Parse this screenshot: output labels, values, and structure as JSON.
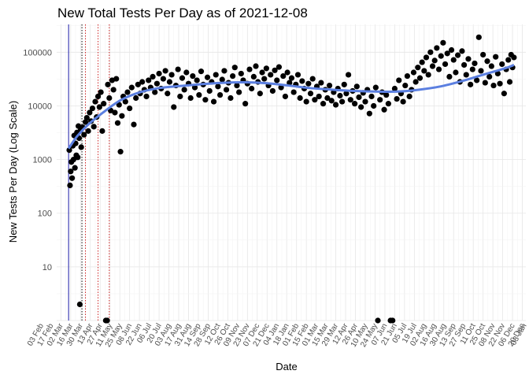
{
  "chart_data": {
    "type": "scatter",
    "title": "New Total Tests Per Day as of 2021-12-08",
    "xlabel": "Date",
    "ylabel": "New Tests Per Day (Log Scale)",
    "y_scale": "log10",
    "ylim": [
      1,
      330000
    ],
    "xlim": [
      "2020-02-25",
      "2021-12-25"
    ],
    "y_tick_labels": [
      "10",
      "100",
      "1000",
      "10000",
      "100000"
    ],
    "x_tick_labels": [
      "03 Feb",
      "17 Feb",
      "02 Mar",
      "16 Mar",
      "30 Mar",
      "13 Apr",
      "27 Apr",
      "11 May",
      "25 May",
      "08 Jun",
      "22 Jun",
      "06 Jul",
      "20 Jul",
      "03 Aug",
      "17 Aug",
      "31 Aug",
      "14 Sep",
      "28 Sep",
      "12 Oct",
      "26 Oct",
      "09 Nov",
      "23 Nov",
      "07 Dec",
      "21 Dec",
      "04 Jan",
      "18 Jan",
      "01 Feb",
      "15 Feb",
      "01 Mar",
      "15 Mar",
      "29 Mar",
      "12 Apr",
      "26 Apr",
      "10 May",
      "24 May",
      "07 Jun",
      "21 Jun",
      "05 Jul",
      "19 Jul",
      "02 Aug",
      "16 Aug",
      "30 Aug",
      "13 Sep",
      "27 Sep",
      "11 Oct",
      "25 Oct",
      "08 Nov",
      "22 Nov",
      "06 Dec",
      "20 Dec",
      "03 Jan"
    ],
    "vertical_lines": [
      {
        "date": "2020-03-13",
        "color": "#1a1aa6",
        "style": "solid"
      },
      {
        "date": "2020-04-01",
        "color": "#000000",
        "style": "dotted"
      },
      {
        "date": "2020-04-06",
        "color": "#cc2222",
        "style": "dotted"
      },
      {
        "date": "2020-04-24",
        "color": "#cc2222",
        "style": "dotted"
      },
      {
        "date": "2020-05-10",
        "color": "#cc2222",
        "style": "dotted"
      }
    ],
    "trend": {
      "color": "#5b7fe0",
      "points": [
        [
          "2020-03-13",
          1600
        ],
        [
          "2020-03-25",
          2700
        ],
        [
          "2020-04-10",
          4500
        ],
        [
          "2020-05-01",
          7500
        ],
        [
          "2020-05-25",
          12500
        ],
        [
          "2020-06-20",
          17500
        ],
        [
          "2020-07-20",
          21500
        ],
        [
          "2020-08-20",
          23500
        ],
        [
          "2020-09-20",
          25500
        ],
        [
          "2020-10-20",
          27000
        ],
        [
          "2020-11-20",
          27500
        ],
        [
          "2020-12-20",
          26500
        ],
        [
          "2021-01-20",
          24000
        ],
        [
          "2021-02-20",
          21500
        ],
        [
          "2021-03-25",
          20000
        ],
        [
          "2021-04-25",
          19000
        ],
        [
          "2021-05-25",
          18500
        ],
        [
          "2021-06-25",
          18500
        ],
        [
          "2021-07-25",
          20000
        ],
        [
          "2021-08-25",
          23000
        ],
        [
          "2021-09-25",
          29000
        ],
        [
          "2021-10-25",
          38000
        ],
        [
          "2021-11-25",
          50000
        ],
        [
          "2021-12-08",
          58000
        ]
      ]
    },
    "series": [
      {
        "values": [
          [
            "2020-03-14",
            1500
          ],
          [
            "2020-03-15",
            330
          ],
          [
            "2020-03-16",
            600
          ],
          [
            "2020-03-17",
            900
          ],
          [
            "2020-03-18",
            450
          ],
          [
            "2020-03-19",
            1800
          ],
          [
            "2020-03-20",
            1000
          ],
          [
            "2020-03-21",
            2800
          ],
          [
            "2020-03-22",
            700
          ],
          [
            "2020-03-23",
            2000
          ],
          [
            "2020-03-24",
            1200
          ],
          [
            "2020-03-25",
            3200
          ],
          [
            "2020-03-26",
            1100
          ],
          [
            "2020-03-27",
            4200
          ],
          [
            "2020-03-28",
            2500
          ],
          [
            "2020-03-29",
            2
          ],
          [
            "2020-03-30",
            3500
          ],
          [
            "2020-03-31",
            1700
          ],
          [
            "2020-04-02",
            4000
          ],
          [
            "2020-04-04",
            2900
          ],
          [
            "2020-04-06",
            5000
          ],
          [
            "2020-04-08",
            6000
          ],
          [
            "2020-04-10",
            3400
          ],
          [
            "2020-04-12",
            7500
          ],
          [
            "2020-04-14",
            5200
          ],
          [
            "2020-04-16",
            9000
          ],
          [
            "2020-04-18",
            4100
          ],
          [
            "2020-04-20",
            12000
          ],
          [
            "2020-04-22",
            6200
          ],
          [
            "2020-04-24",
            15000
          ],
          [
            "2020-04-26",
            9500
          ],
          [
            "2020-04-28",
            18000
          ],
          [
            "2020-04-30",
            3400
          ],
          [
            "2020-05-02",
            11000
          ],
          [
            "2020-05-05",
            1
          ],
          [
            "2020-05-07",
            1
          ],
          [
            "2020-05-08",
            25000
          ],
          [
            "2020-05-10",
            14000
          ],
          [
            "2020-05-12",
            8200
          ],
          [
            "2020-05-14",
            30000
          ],
          [
            "2020-05-16",
            20000
          ],
          [
            "2020-05-18",
            7500
          ],
          [
            "2020-05-20",
            32000
          ],
          [
            "2020-05-22",
            4800
          ],
          [
            "2020-05-24",
            10500
          ],
          [
            "2020-05-26",
            1400
          ],
          [
            "2020-05-28",
            6500
          ],
          [
            "2020-05-30",
            15000
          ],
          [
            "2020-06-02",
            12000
          ],
          [
            "2020-06-05",
            18000
          ],
          [
            "2020-06-08",
            9000
          ],
          [
            "2020-06-11",
            22000
          ],
          [
            "2020-06-14",
            4500
          ],
          [
            "2020-06-17",
            14000
          ],
          [
            "2020-06-20",
            25000
          ],
          [
            "2020-06-23",
            17000
          ],
          [
            "2020-06-26",
            28000
          ],
          [
            "2020-06-29",
            20000
          ],
          [
            "2020-07-02",
            15000
          ],
          [
            "2020-07-05",
            30000
          ],
          [
            "2020-07-08",
            22000
          ],
          [
            "2020-07-11",
            35000
          ],
          [
            "2020-07-14",
            18000
          ],
          [
            "2020-07-17",
            26000
          ],
          [
            "2020-07-20",
            40000
          ],
          [
            "2020-07-23",
            21000
          ],
          [
            "2020-07-26",
            32000
          ],
          [
            "2020-07-29",
            45000
          ],
          [
            "2020-08-01",
            17000
          ],
          [
            "2020-08-04",
            28000
          ],
          [
            "2020-08-07",
            38000
          ],
          [
            "2020-08-10",
            9500
          ],
          [
            "2020-08-13",
            24000
          ],
          [
            "2020-08-16",
            48000
          ],
          [
            "2020-08-19",
            15000
          ],
          [
            "2020-08-22",
            33000
          ],
          [
            "2020-08-25",
            20000
          ],
          [
            "2020-08-28",
            42000
          ],
          [
            "2020-08-31",
            26000
          ],
          [
            "2020-09-03",
            14000
          ],
          [
            "2020-09-06",
            36000
          ],
          [
            "2020-09-09",
            22000
          ],
          [
            "2020-09-12",
            30000
          ],
          [
            "2020-09-15",
            16000
          ],
          [
            "2020-09-18",
            44000
          ],
          [
            "2020-09-21",
            25000
          ],
          [
            "2020-09-24",
            13000
          ],
          [
            "2020-09-27",
            34000
          ],
          [
            "2020-09-30",
            19000
          ],
          [
            "2020-10-03",
            28000
          ],
          [
            "2020-10-06",
            12000
          ],
          [
            "2020-10-09",
            38000
          ],
          [
            "2020-10-12",
            23000
          ],
          [
            "2020-10-15",
            16000
          ],
          [
            "2020-10-18",
            31000
          ],
          [
            "2020-10-21",
            45000
          ],
          [
            "2020-10-24",
            20000
          ],
          [
            "2020-10-27",
            27000
          ],
          [
            "2020-10-30",
            14000
          ],
          [
            "2020-11-02",
            36000
          ],
          [
            "2020-11-05",
            52000
          ],
          [
            "2020-11-08",
            24000
          ],
          [
            "2020-11-11",
            18000
          ],
          [
            "2020-11-14",
            40000
          ],
          [
            "2020-11-17",
            30000
          ],
          [
            "2020-11-20",
            11000
          ],
          [
            "2020-11-23",
            26000
          ],
          [
            "2020-11-26",
            48000
          ],
          [
            "2020-11-29",
            21000
          ],
          [
            "2020-12-02",
            35000
          ],
          [
            "2020-12-05",
            55000
          ],
          [
            "2020-12-08",
            28000
          ],
          [
            "2020-12-11",
            17000
          ],
          [
            "2020-12-14",
            42000
          ],
          [
            "2020-12-17",
            32000
          ],
          [
            "2020-12-20",
            50000
          ],
          [
            "2020-12-23",
            24000
          ],
          [
            "2020-12-26",
            38000
          ],
          [
            "2020-12-29",
            19000
          ],
          [
            "2021-01-01",
            46000
          ],
          [
            "2021-01-04",
            30000
          ],
          [
            "2021-01-07",
            53000
          ],
          [
            "2021-01-10",
            22000
          ],
          [
            "2021-01-13",
            36000
          ],
          [
            "2021-01-16",
            15000
          ],
          [
            "2021-01-19",
            42000
          ],
          [
            "2021-01-22",
            27000
          ],
          [
            "2021-01-25",
            33000
          ],
          [
            "2021-01-28",
            18000
          ],
          [
            "2021-01-31",
            25000
          ],
          [
            "2021-02-03",
            38000
          ],
          [
            "2021-02-06",
            14000
          ],
          [
            "2021-02-09",
            29000
          ],
          [
            "2021-02-12",
            21000
          ],
          [
            "2021-02-15",
            12000
          ],
          [
            "2021-02-18",
            26000
          ],
          [
            "2021-02-21",
            17000
          ],
          [
            "2021-02-24",
            32000
          ],
          [
            "2021-02-27",
            13000
          ],
          [
            "2021-03-02",
            23000
          ],
          [
            "2021-03-05",
            15000
          ],
          [
            "2021-03-08",
            27000
          ],
          [
            "2021-03-11",
            11000
          ],
          [
            "2021-03-14",
            20000
          ],
          [
            "2021-03-17",
            14000
          ],
          [
            "2021-03-20",
            24000
          ],
          [
            "2021-03-23",
            12500
          ],
          [
            "2021-03-26",
            18000
          ],
          [
            "2021-03-29",
            10500
          ],
          [
            "2021-04-01",
            21000
          ],
          [
            "2021-04-04",
            15500
          ],
          [
            "2021-04-07",
            12000
          ],
          [
            "2021-04-10",
            25000
          ],
          [
            "2021-04-13",
            17000
          ],
          [
            "2021-04-16",
            38000
          ],
          [
            "2021-04-19",
            13000
          ],
          [
            "2021-04-22",
            19000
          ],
          [
            "2021-04-25",
            11000
          ],
          [
            "2021-04-28",
            23000
          ],
          [
            "2021-05-01",
            14500
          ],
          [
            "2021-05-04",
            9500
          ],
          [
            "2021-05-07",
            17500
          ],
          [
            "2021-05-10",
            12000
          ],
          [
            "2021-05-13",
            20000
          ],
          [
            "2021-05-16",
            7200
          ],
          [
            "2021-05-19",
            15000
          ],
          [
            "2021-05-22",
            10000
          ],
          [
            "2021-05-25",
            22000
          ],
          [
            "2021-05-28",
            1
          ],
          [
            "2021-05-31",
            13000
          ],
          [
            "2021-06-03",
            18000
          ],
          [
            "2021-06-06",
            8500
          ],
          [
            "2021-06-09",
            16000
          ],
          [
            "2021-06-12",
            11000
          ],
          [
            "2021-06-15",
            1
          ],
          [
            "2021-06-18",
            1
          ],
          [
            "2021-06-21",
            21000
          ],
          [
            "2021-06-24",
            13500
          ],
          [
            "2021-06-27",
            30000
          ],
          [
            "2021-06-30",
            17000
          ],
          [
            "2021-07-03",
            12000
          ],
          [
            "2021-07-06",
            24000
          ],
          [
            "2021-07-09",
            36000
          ],
          [
            "2021-07-12",
            15000
          ],
          [
            "2021-07-15",
            20000
          ],
          [
            "2021-07-18",
            42000
          ],
          [
            "2021-07-21",
            28000
          ],
          [
            "2021-07-24",
            52000
          ],
          [
            "2021-07-27",
            33000
          ],
          [
            "2021-07-30",
            65000
          ],
          [
            "2021-08-02",
            45000
          ],
          [
            "2021-08-05",
            80000
          ],
          [
            "2021-08-08",
            38000
          ],
          [
            "2021-08-11",
            100000
          ],
          [
            "2021-08-14",
            55000
          ],
          [
            "2021-08-17",
            70000
          ],
          [
            "2021-08-20",
            120000
          ],
          [
            "2021-08-23",
            48000
          ],
          [
            "2021-08-26",
            85000
          ],
          [
            "2021-08-29",
            150000
          ],
          [
            "2021-09-01",
            60000
          ],
          [
            "2021-09-04",
            95000
          ],
          [
            "2021-09-07",
            35000
          ],
          [
            "2021-09-10",
            110000
          ],
          [
            "2021-09-13",
            72000
          ],
          [
            "2021-09-16",
            42000
          ],
          [
            "2021-09-19",
            88000
          ],
          [
            "2021-09-22",
            28000
          ],
          [
            "2021-09-25",
            105000
          ],
          [
            "2021-09-28",
            58000
          ],
          [
            "2021-10-01",
            38000
          ],
          [
            "2021-10-04",
            75000
          ],
          [
            "2021-10-07",
            25000
          ],
          [
            "2021-10-10",
            48000
          ],
          [
            "2021-10-13",
            62000
          ],
          [
            "2021-10-16",
            30000
          ],
          [
            "2021-10-19",
            190000
          ],
          [
            "2021-10-22",
            45000
          ],
          [
            "2021-10-25",
            90000
          ],
          [
            "2021-10-28",
            27000
          ],
          [
            "2021-10-31",
            68000
          ],
          [
            "2021-11-03",
            35000
          ],
          [
            "2021-11-06",
            55000
          ],
          [
            "2021-11-09",
            24000
          ],
          [
            "2021-11-12",
            82000
          ],
          [
            "2021-11-15",
            40000
          ],
          [
            "2021-11-18",
            26000
          ],
          [
            "2021-11-21",
            60000
          ],
          [
            "2021-11-24",
            17000
          ],
          [
            "2021-11-27",
            48000
          ],
          [
            "2021-11-30",
            72000
          ],
          [
            "2021-12-02",
            28000
          ],
          [
            "2021-12-04",
            90000
          ],
          [
            "2021-12-06",
            52000
          ],
          [
            "2021-12-08",
            80000
          ]
        ]
      }
    ]
  }
}
